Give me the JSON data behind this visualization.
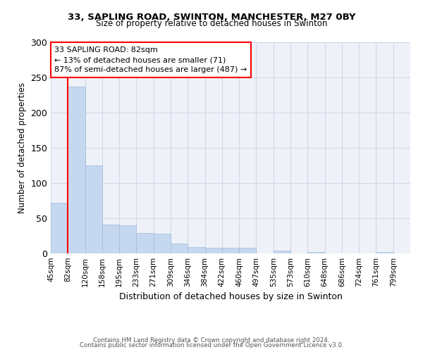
{
  "title1": "33, SAPLING ROAD, SWINTON, MANCHESTER, M27 0BY",
  "title2": "Size of property relative to detached houses in Swinton",
  "xlabel": "Distribution of detached houses by size in Swinton",
  "ylabel": "Number of detached properties",
  "footer1": "Contains HM Land Registry data © Crown copyright and database right 2024.",
  "footer2": "Contains public sector information licensed under the Open Government Licence v3.0.",
  "bins": [
    "45sqm",
    "82sqm",
    "120sqm",
    "158sqm",
    "195sqm",
    "233sqm",
    "271sqm",
    "309sqm",
    "346sqm",
    "384sqm",
    "422sqm",
    "460sqm",
    "497sqm",
    "535sqm",
    "573sqm",
    "610sqm",
    "648sqm",
    "686sqm",
    "724sqm",
    "761sqm",
    "799sqm"
  ],
  "values": [
    72,
    237,
    125,
    41,
    40,
    29,
    28,
    14,
    9,
    8,
    8,
    8,
    0,
    4,
    0,
    2,
    0,
    0,
    0,
    2,
    0
  ],
  "bar_color": "#c5d8f0",
  "bar_edge_color": "#a0b8d8",
  "grid_color": "#d0d8e8",
  "background_color": "#eef2f8",
  "red_line_bin_index": 1,
  "annotation_text": "33 SAPLING ROAD: 82sqm\n← 13% of detached houses are smaller (71)\n87% of semi-detached houses are larger (487) →",
  "ylim": [
    0,
    300
  ],
  "yticks": [
    0,
    50,
    100,
    150,
    200,
    250,
    300
  ]
}
